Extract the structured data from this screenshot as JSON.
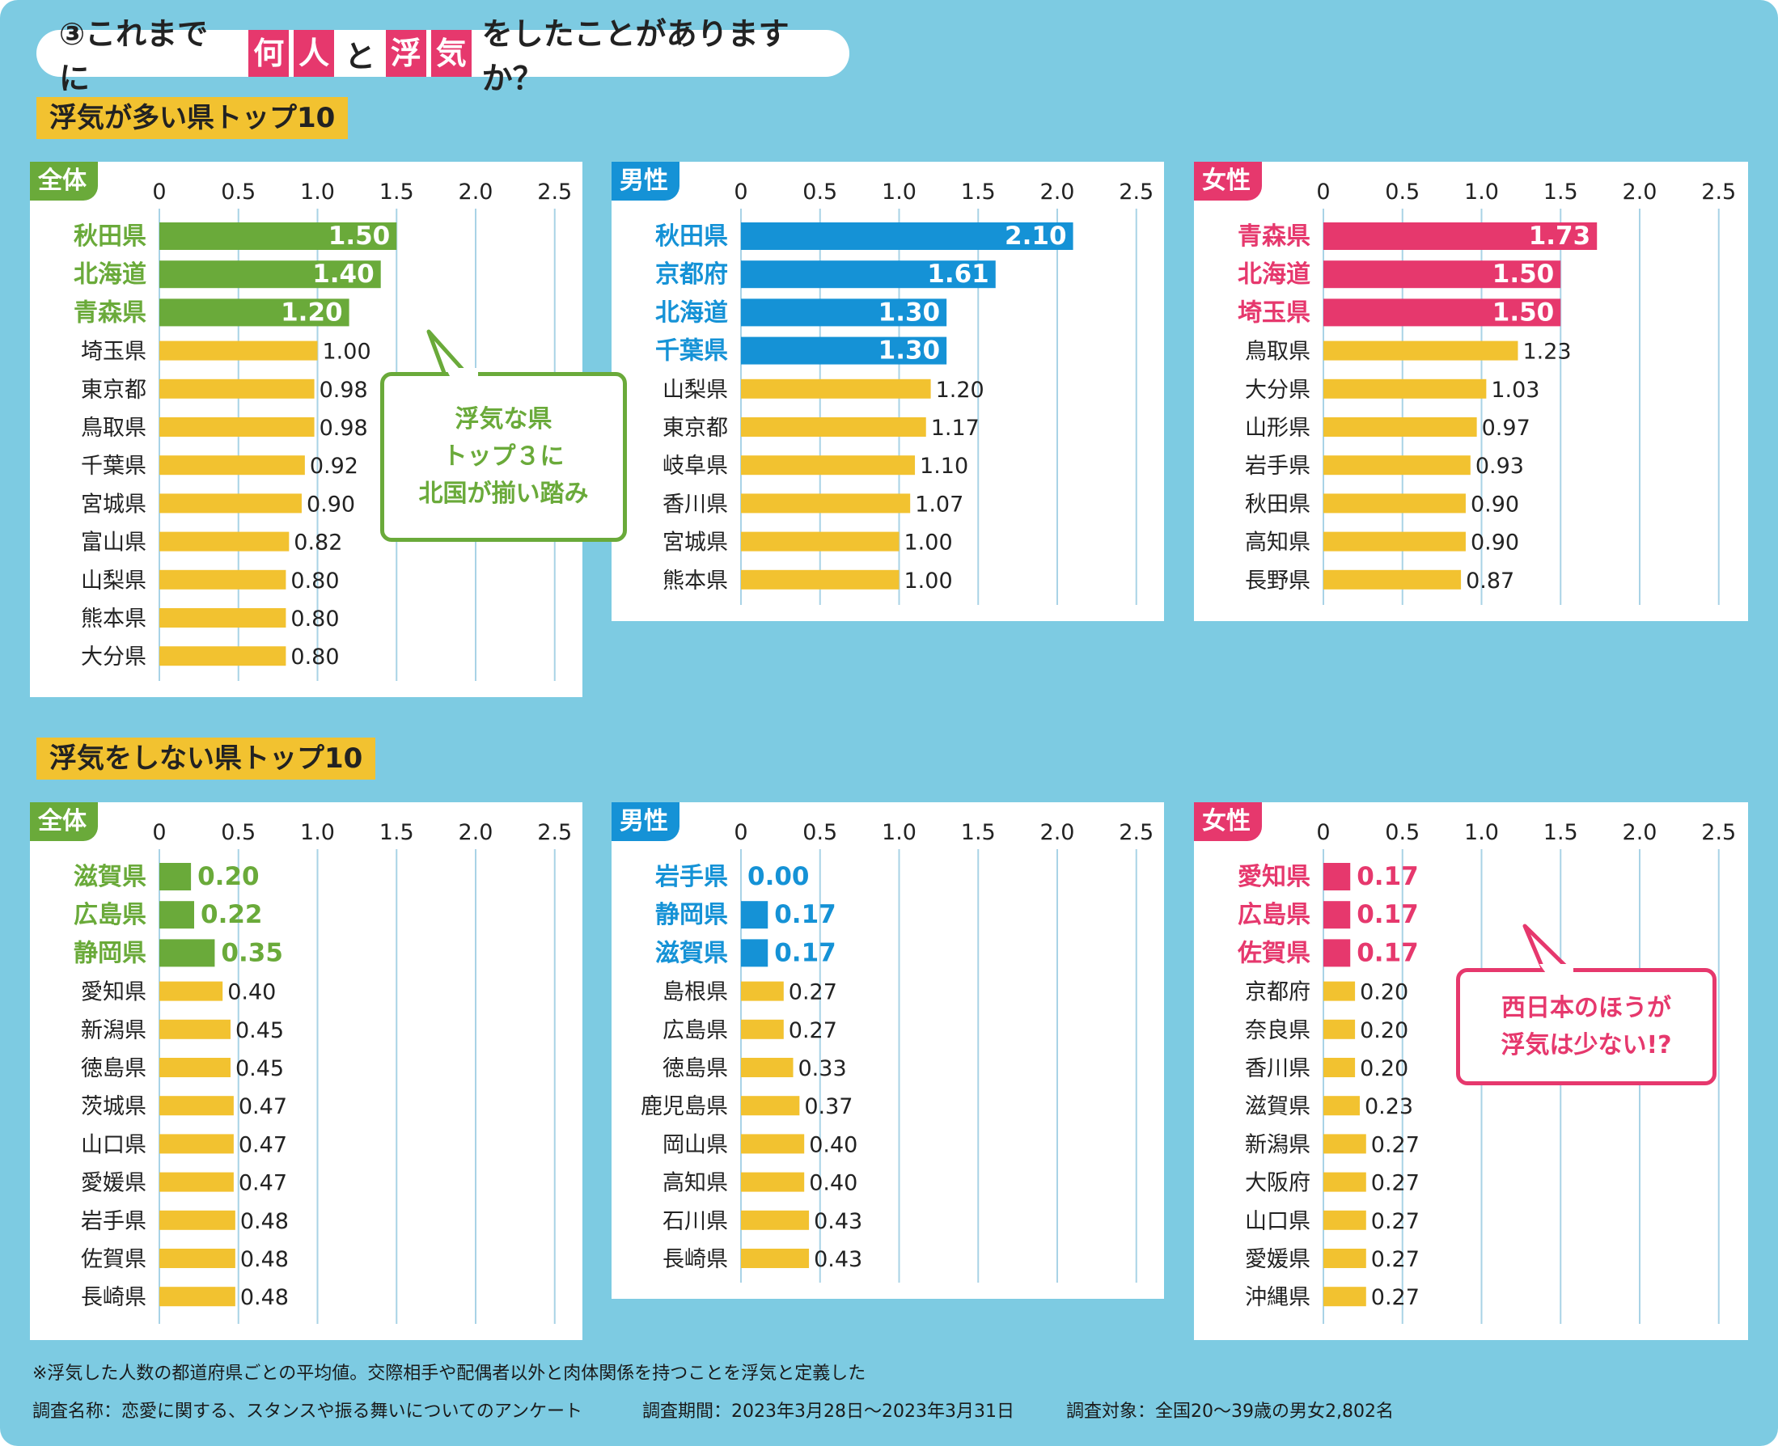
{
  "title": {
    "prefix": "③これまでに",
    "hl1": "何",
    "hl2": "人",
    "mid": "と",
    "hl3": "浮",
    "hl4": "気",
    "suffix": "をしたことがありますか？"
  },
  "sections": {
    "most": "浮気が多い県トップ10",
    "least": "浮気をしない県トップ10"
  },
  "colors": {
    "all": "#6aaa3a",
    "male": "#1592d6",
    "female": "#e6386d",
    "other": "#f2c230"
  },
  "callouts": {
    "north": [
      "浮気な県",
      "トップ３に",
      "北国が揃い踏み"
    ],
    "west": [
      "西日本のほうが",
      "浮気は少ない!?"
    ]
  },
  "footnote": "※浮気した人数の都道府県ごとの平均値。交際相手や配偶者以外と肉体関係を持つことを浮気と定義した",
  "survey": {
    "name": "調査名称：恋愛に関する、スタンスや振る舞いについてのアンケート",
    "period": "調査期間：2023年3月28日〜2023年3月31日",
    "target": "調査対象：全国20〜39歳の男女2,802名"
  },
  "chart_data": [
    {
      "type": "bar",
      "group": "浮気が多い県トップ10",
      "tab": "全体",
      "color": "#6aaa3a",
      "xlim": [
        0,
        2.5
      ],
      "ticks": [
        "0",
        "0.5",
        "1.0",
        "1.5",
        "2.0",
        "2.5"
      ],
      "highlight": 3,
      "categories": [
        "秋田県",
        "北海道",
        "青森県",
        "埼玉県",
        "東京都",
        "鳥取県",
        "千葉県",
        "宮城県",
        "富山県",
        "山梨県",
        "熊本県",
        "大分県"
      ],
      "values": [
        1.5,
        1.4,
        1.2,
        1.0,
        0.98,
        0.98,
        0.92,
        0.9,
        0.82,
        0.8,
        0.8,
        0.8
      ],
      "labels": [
        "1.50",
        "1.40",
        "1.20",
        "1.00",
        "0.98",
        "0.98",
        "0.92",
        "0.90",
        "0.82",
        "0.80",
        "0.80",
        "0.80"
      ]
    },
    {
      "type": "bar",
      "group": "浮気が多い県トップ10",
      "tab": "男性",
      "color": "#1592d6",
      "xlim": [
        0,
        2.5
      ],
      "ticks": [
        "0",
        "0.5",
        "1.0",
        "1.5",
        "2.0",
        "2.5"
      ],
      "highlight": 4,
      "categories": [
        "秋田県",
        "京都府",
        "北海道",
        "千葉県",
        "山梨県",
        "東京都",
        "岐阜県",
        "香川県",
        "宮城県",
        "熊本県"
      ],
      "values": [
        2.1,
        1.61,
        1.3,
        1.3,
        1.2,
        1.17,
        1.1,
        1.07,
        1.0,
        1.0
      ],
      "labels": [
        "2.10",
        "1.61",
        "1.30",
        "1.30",
        "1.20",
        "1.17",
        "1.10",
        "1.07",
        "1.00",
        "1.00"
      ]
    },
    {
      "type": "bar",
      "group": "浮気が多い県トップ10",
      "tab": "女性",
      "color": "#e6386d",
      "xlim": [
        0,
        2.5
      ],
      "ticks": [
        "0",
        "0.5",
        "1.0",
        "1.5",
        "2.0",
        "2.5"
      ],
      "highlight": 3,
      "categories": [
        "青森県",
        "北海道",
        "埼玉県",
        "鳥取県",
        "大分県",
        "山形県",
        "岩手県",
        "秋田県",
        "高知県",
        "長野県"
      ],
      "values": [
        1.73,
        1.5,
        1.5,
        1.23,
        1.03,
        0.97,
        0.93,
        0.9,
        0.9,
        0.87
      ],
      "labels": [
        "1.73",
        "1.50",
        "1.50",
        "1.23",
        "1.03",
        "0.97",
        "0.93",
        "0.90",
        "0.90",
        "0.87"
      ]
    },
    {
      "type": "bar",
      "group": "浮気をしない県トップ10",
      "tab": "全体",
      "color": "#6aaa3a",
      "xlim": [
        0,
        2.5
      ],
      "ticks": [
        "0",
        "0.5",
        "1.0",
        "1.5",
        "2.0",
        "2.5"
      ],
      "highlight": 3,
      "categories": [
        "滋賀県",
        "広島県",
        "静岡県",
        "愛知県",
        "新潟県",
        "徳島県",
        "茨城県",
        "山口県",
        "愛媛県",
        "岩手県",
        "佐賀県",
        "長崎県"
      ],
      "values": [
        0.2,
        0.22,
        0.35,
        0.4,
        0.45,
        0.45,
        0.47,
        0.47,
        0.47,
        0.48,
        0.48,
        0.48
      ],
      "labels": [
        "0.20",
        "0.22",
        "0.35",
        "0.40",
        "0.45",
        "0.45",
        "0.47",
        "0.47",
        "0.47",
        "0.48",
        "0.48",
        "0.48"
      ]
    },
    {
      "type": "bar",
      "group": "浮気をしない県トップ10",
      "tab": "男性",
      "color": "#1592d6",
      "xlim": [
        0,
        2.5
      ],
      "ticks": [
        "0",
        "0.5",
        "1.0",
        "1.5",
        "2.0",
        "2.5"
      ],
      "highlight": 3,
      "categories": [
        "岩手県",
        "静岡県",
        "滋賀県",
        "島根県",
        "広島県",
        "徳島県",
        "鹿児島県",
        "岡山県",
        "高知県",
        "石川県",
        "長崎県"
      ],
      "values": [
        0.0,
        0.17,
        0.17,
        0.27,
        0.27,
        0.33,
        0.37,
        0.4,
        0.4,
        0.43,
        0.43
      ],
      "labels": [
        "0.00",
        "0.17",
        "0.17",
        "0.27",
        "0.27",
        "0.33",
        "0.37",
        "0.40",
        "0.40",
        "0.43",
        "0.43"
      ]
    },
    {
      "type": "bar",
      "group": "浮気をしない県トップ10",
      "tab": "女性",
      "color": "#e6386d",
      "xlim": [
        0,
        2.5
      ],
      "ticks": [
        "0",
        "0.5",
        "1.0",
        "1.5",
        "2.0",
        "2.5"
      ],
      "highlight": 3,
      "categories": [
        "愛知県",
        "広島県",
        "佐賀県",
        "京都府",
        "奈良県",
        "香川県",
        "滋賀県",
        "新潟県",
        "大阪府",
        "山口県",
        "愛媛県",
        "沖縄県"
      ],
      "values": [
        0.17,
        0.17,
        0.17,
        0.2,
        0.2,
        0.2,
        0.23,
        0.27,
        0.27,
        0.27,
        0.27,
        0.27
      ],
      "labels": [
        "0.17",
        "0.17",
        "0.17",
        "0.20",
        "0.20",
        "0.20",
        "0.23",
        "0.27",
        "0.27",
        "0.27",
        "0.27",
        "0.27"
      ]
    }
  ]
}
